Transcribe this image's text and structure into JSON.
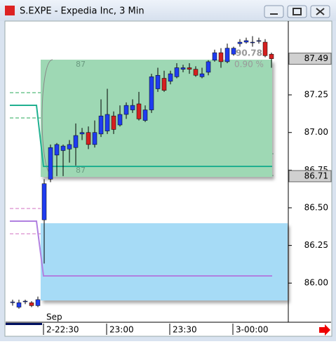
{
  "window_title": "S.EXPE - Expedia Inc, 3 Min",
  "chart_data": {
    "type": "candlestick",
    "categories": [
      null,
      null,
      null,
      null,
      null,
      "2-22:30",
      null,
      null,
      null,
      null,
      null,
      null,
      null,
      null,
      null,
      "23:00",
      null,
      null,
      null,
      null,
      null,
      null,
      null,
      null,
      null,
      "23:30",
      null,
      null,
      null,
      null,
      null,
      null,
      null,
      null,
      null,
      "3-00:00",
      null,
      null,
      null,
      null,
      null,
      null
    ],
    "x_annotation": "Sep",
    "open": [
      85.87,
      85.84,
      85.88,
      85.87,
      85.85,
      86.42,
      86.69,
      86.85,
      86.88,
      86.89,
      86.9,
      86.99,
      87.0,
      86.92,
      86.99,
      87.01,
      87.11,
      87.05,
      87.12,
      87.15,
      87.19,
      87.08,
      87.15,
      87.29,
      87.36,
      87.34,
      87.37,
      87.42,
      87.43,
      87.42,
      87.37,
      87.4,
      87.48,
      87.53,
      87.47,
      87.52,
      87.59,
      87.6,
      87.6,
      87.61,
      87.6,
      87.52
    ],
    "high": [
      85.89,
      85.89,
      85.89,
      85.88,
      85.91,
      86.69,
      86.92,
      86.93,
      86.92,
      86.95,
      87.06,
      87.03,
      87.04,
      87.08,
      87.22,
      87.29,
      87.14,
      87.18,
      87.2,
      87.22,
      87.27,
      87.18,
      87.39,
      87.43,
      87.41,
      87.41,
      87.46,
      87.45,
      87.46,
      87.44,
      87.43,
      87.48,
      87.55,
      87.56,
      87.59,
      87.57,
      87.62,
      87.63,
      87.64,
      87.63,
      87.62,
      87.53
    ],
    "low": [
      85.85,
      85.83,
      85.86,
      85.84,
      85.84,
      86.13,
      86.67,
      86.71,
      86.71,
      86.8,
      86.78,
      86.95,
      86.89,
      86.9,
      86.97,
      86.99,
      86.99,
      87.04,
      87.09,
      87.13,
      87.08,
      87.07,
      87.13,
      87.27,
      87.27,
      87.32,
      87.36,
      87.4,
      87.39,
      87.37,
      87.36,
      87.38,
      87.47,
      87.43,
      87.46,
      87.51,
      87.57,
      87.59,
      87.57,
      87.59,
      87.5,
      87.43
    ],
    "close": [
      85.875,
      85.87,
      85.88,
      85.85,
      85.89,
      86.66,
      86.9,
      86.92,
      86.91,
      86.92,
      86.98,
      87.0,
      86.92,
      87.0,
      87.11,
      87.12,
      87.02,
      87.12,
      87.18,
      87.18,
      87.09,
      87.15,
      87.37,
      87.38,
      87.28,
      87.39,
      87.43,
      87.43,
      87.42,
      87.38,
      87.39,
      87.47,
      87.53,
      87.47,
      87.56,
      87.56,
      87.6,
      87.61,
      87.6,
      87.61,
      87.51,
      87.49
    ],
    "up_color": "#1f3cf0",
    "down_color": "#d42020",
    "ylim": [
      85.74,
      87.74
    ],
    "yticks": [
      {
        "value": 86,
        "label": "86.00"
      },
      86.25,
      {
        "value": 86.5,
        "label": "86.50"
      },
      86.75,
      {
        "value": 87,
        "label": "87.00"
      },
      87.25
    ],
    "price_markers": [
      87.49,
      86.71
    ],
    "annotations": [
      "87",
      "87",
      "90.78",
      "0.90 %"
    ]
  }
}
